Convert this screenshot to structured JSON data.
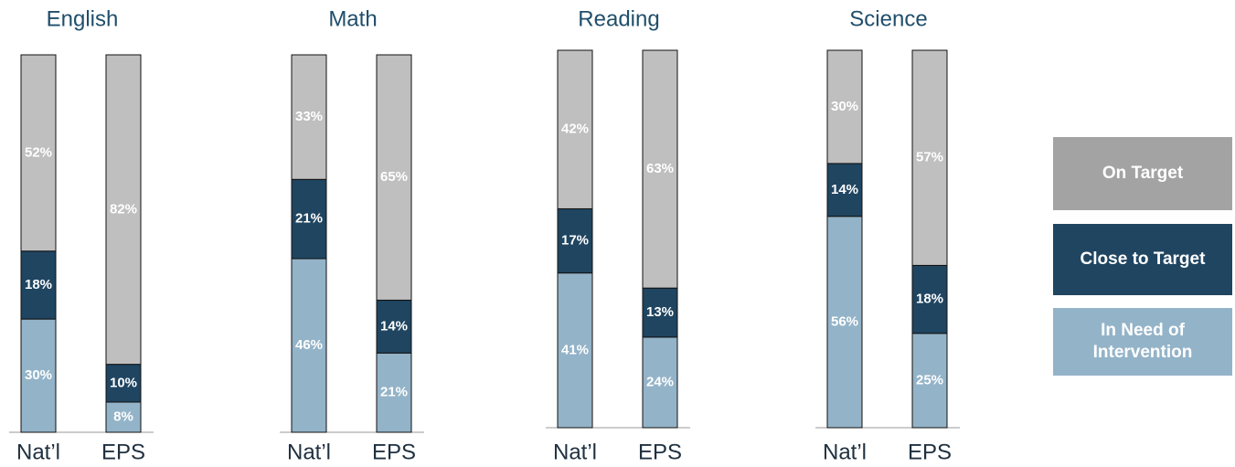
{
  "chart_data": [
    {
      "type": "bar",
      "stacked": true,
      "title": "English",
      "categories": [
        "Nat’l",
        "EPS"
      ],
      "ylim": [
        0,
        100
      ],
      "series": [
        {
          "name": "In Need of Intervention",
          "color": "#93b3c8",
          "values": [
            30,
            8
          ],
          "value_labels": [
            "30%",
            "8%"
          ]
        },
        {
          "name": "Close to Target",
          "color": "#1f4561",
          "values": [
            18,
            10
          ],
          "value_labels": [
            "18%",
            "10%"
          ]
        },
        {
          "name": "On Target",
          "color": "#bfbfbf",
          "values": [
            52,
            82
          ],
          "value_labels": [
            "52%",
            "82%"
          ]
        }
      ]
    },
    {
      "type": "bar",
      "stacked": true,
      "title": "Math",
      "categories": [
        "Nat’l",
        "EPS"
      ],
      "ylim": [
        0,
        100
      ],
      "series": [
        {
          "values": [
            46,
            21
          ],
          "value_labels": [
            "46%",
            "21%"
          ]
        },
        {
          "values": [
            21,
            14
          ],
          "value_labels": [
            "21%",
            "14%"
          ]
        },
        {
          "values": [
            33,
            65
          ],
          "value_labels": [
            "33%",
            "65%"
          ]
        }
      ]
    },
    {
      "type": "bar",
      "stacked": true,
      "title": "Reading",
      "categories": [
        "Nat’l",
        "EPS"
      ],
      "ylim": [
        0,
        100
      ],
      "series": [
        {
          "values": [
            41,
            24
          ],
          "value_labels": [
            "41%",
            "24%"
          ]
        },
        {
          "values": [
            17,
            13
          ],
          "value_labels": [
            "17%",
            "13%"
          ]
        },
        {
          "values": [
            42,
            63
          ],
          "value_labels": [
            "42%",
            "63%"
          ]
        }
      ]
    },
    {
      "type": "bar",
      "stacked": true,
      "title": "Science",
      "categories": [
        "Nat’l",
        "EPS"
      ],
      "ylim": [
        0,
        100
      ],
      "series": [
        {
          "values": [
            56,
            25
          ],
          "value_labels": [
            "56%",
            "25%"
          ]
        },
        {
          "values": [
            14,
            18
          ],
          "value_labels": [
            "14%",
            "18%"
          ]
        },
        {
          "values": [
            30,
            57
          ],
          "value_labels": [
            "30%",
            "57%"
          ]
        }
      ]
    }
  ]
}
